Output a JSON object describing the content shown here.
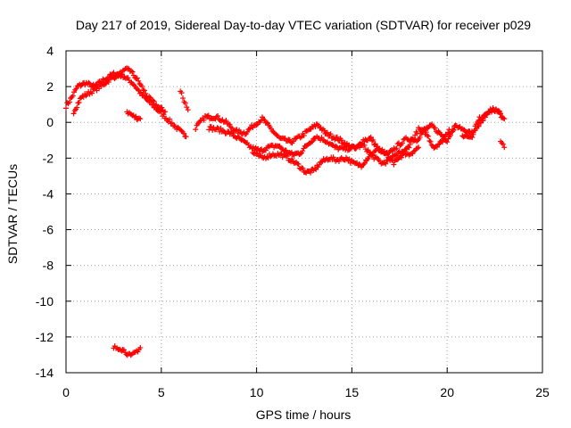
{
  "chart_data": {
    "type": "scatter",
    "title": "Day 217 of 2019, Sidereal Day-to-day VTEC variation (SDTVAR) for receiver p029",
    "xlabel": "GPS time / hours",
    "ylabel": "SDTVAR / TECUs",
    "xlim": [
      0,
      25
    ],
    "ylim": [
      -14,
      4
    ],
    "x_ticks": [
      0,
      5,
      10,
      15,
      20,
      25
    ],
    "y_ticks": [
      -14,
      -12,
      -10,
      -8,
      -6,
      -4,
      -2,
      0,
      2,
      4
    ],
    "grid": true,
    "marker": "plus",
    "color": "#ff0000",
    "series": [
      {
        "name": "SDTVAR",
        "tracks": [
          [
            [
              0.0,
              0.9
            ],
            [
              0.3,
              1.4
            ],
            [
              0.6,
              2.0
            ],
            [
              1.0,
              2.2
            ],
            [
              1.5,
              2.0
            ],
            [
              2.0,
              2.4
            ],
            [
              2.5,
              2.7
            ],
            [
              3.0,
              2.6
            ],
            [
              3.5,
              2.2
            ],
            [
              4.0,
              1.5
            ],
            [
              4.5,
              1.0
            ],
            [
              5.0,
              0.5
            ],
            [
              5.5,
              0.0
            ],
            [
              6.0,
              -0.5
            ],
            [
              6.3,
              -0.8
            ]
          ],
          [
            [
              0.4,
              0.6
            ],
            [
              0.8,
              1.4
            ],
            [
              1.3,
              1.7
            ],
            [
              1.8,
              2.0
            ],
            [
              2.3,
              2.4
            ],
            [
              2.8,
              2.7
            ],
            [
              3.3,
              3.0
            ],
            [
              3.8,
              2.3
            ],
            [
              4.3,
              1.4
            ],
            [
              4.8,
              0.9
            ],
            [
              5.2,
              0.6
            ]
          ],
          [
            [
              3.2,
              0.6
            ],
            [
              3.6,
              0.3
            ],
            [
              3.9,
              0.2
            ]
          ],
          [
            [
              6.0,
              1.8
            ],
            [
              6.2,
              1.2
            ],
            [
              6.4,
              0.7
            ]
          ],
          [
            [
              6.8,
              -0.3
            ],
            [
              7.3,
              0.3
            ],
            [
              7.9,
              0.3
            ],
            [
              8.4,
              0.0
            ],
            [
              8.9,
              -0.5
            ],
            [
              9.4,
              -0.6
            ],
            [
              9.8,
              -0.2
            ],
            [
              10.3,
              0.2
            ],
            [
              10.7,
              -0.3
            ],
            [
              11.2,
              -0.9
            ],
            [
              11.8,
              -1.1
            ],
            [
              12.3,
              -0.8
            ],
            [
              12.8,
              -0.4
            ],
            [
              13.2,
              -0.1
            ],
            [
              13.6,
              -0.6
            ],
            [
              14.0,
              -0.8
            ],
            [
              14.4,
              -1.0
            ],
            [
              14.8,
              -1.3
            ],
            [
              15.2,
              -1.5
            ],
            [
              15.6,
              -1.0
            ],
            [
              16.0,
              -0.9
            ],
            [
              16.4,
              -1.5
            ],
            [
              16.9,
              -1.8
            ],
            [
              17.4,
              -1.3
            ],
            [
              17.9,
              -0.9
            ],
            [
              18.4,
              -1.0
            ],
            [
              18.8,
              -0.4
            ],
            [
              19.2,
              -0.2
            ],
            [
              19.6,
              -0.6
            ],
            [
              20.0,
              -1.0
            ],
            [
              20.4,
              -0.2
            ]
          ],
          [
            [
              7.5,
              -0.3
            ],
            [
              8.0,
              -0.4
            ],
            [
              8.6,
              -0.6
            ],
            [
              9.2,
              -1.0
            ],
            [
              9.7,
              -1.4
            ],
            [
              10.2,
              -1.6
            ],
            [
              10.6,
              -1.4
            ],
            [
              11.1,
              -1.3
            ],
            [
              11.5,
              -1.6
            ],
            [
              11.9,
              -1.8
            ],
            [
              12.3,
              -1.7
            ],
            [
              12.7,
              -1.2
            ],
            [
              13.1,
              -0.8
            ],
            [
              13.6,
              -1.0
            ],
            [
              14.1,
              -1.4
            ],
            [
              14.6,
              -1.5
            ],
            [
              15.1,
              -1.4
            ],
            [
              15.6,
              -1.3
            ],
            [
              16.1,
              -1.9
            ],
            [
              16.6,
              -2.3
            ],
            [
              17.0,
              -2.1
            ],
            [
              17.5,
              -1.6
            ],
            [
              18.0,
              -1.8
            ],
            [
              18.5,
              -1.4
            ]
          ],
          [
            [
              9.8,
              -1.7
            ],
            [
              10.3,
              -2.0
            ],
            [
              10.8,
              -1.8
            ],
            [
              11.3,
              -1.8
            ],
            [
              11.8,
              -2.1
            ],
            [
              12.2,
              -2.4
            ],
            [
              12.6,
              -2.8
            ],
            [
              13.0,
              -2.7
            ],
            [
              13.4,
              -2.2
            ],
            [
              13.8,
              -2.0
            ],
            [
              14.2,
              -2.1
            ],
            [
              14.7,
              -2.0
            ],
            [
              15.1,
              -2.3
            ],
            [
              15.5,
              -2.4
            ],
            [
              15.9,
              -1.9
            ],
            [
              16.4,
              -1.5
            ],
            [
              16.8,
              -1.8
            ],
            [
              17.2,
              -2.3
            ],
            [
              17.6,
              -1.9
            ],
            [
              18.0,
              -1.3
            ],
            [
              18.5,
              -0.4
            ],
            [
              18.9,
              -0.6
            ],
            [
              19.3,
              -1.4
            ],
            [
              19.7,
              -1.1
            ],
            [
              20.1,
              -0.4
            ]
          ],
          [
            [
              20.1,
              -0.6
            ],
            [
              20.5,
              -0.2
            ],
            [
              20.9,
              -0.4
            ],
            [
              21.3,
              -0.6
            ],
            [
              21.7,
              0.2
            ],
            [
              22.1,
              0.6
            ],
            [
              22.5,
              0.7
            ],
            [
              22.9,
              0.3
            ],
            [
              23.0,
              0.2
            ]
          ],
          [
            [
              20.8,
              -0.7
            ],
            [
              21.2,
              -0.9
            ],
            [
              21.6,
              -0.3
            ],
            [
              22.0,
              0.4
            ],
            [
              22.4,
              0.8
            ],
            [
              22.8,
              0.5
            ]
          ],
          [
            [
              22.8,
              -1.1
            ],
            [
              23.0,
              -1.4
            ]
          ],
          [
            [
              2.5,
              -12.6
            ],
            [
              2.8,
              -12.6
            ],
            [
              3.1,
              -12.8
            ],
            [
              3.4,
              -13.1
            ],
            [
              3.7,
              -12.8
            ],
            [
              3.9,
              -12.6
            ]
          ]
        ]
      }
    ]
  }
}
